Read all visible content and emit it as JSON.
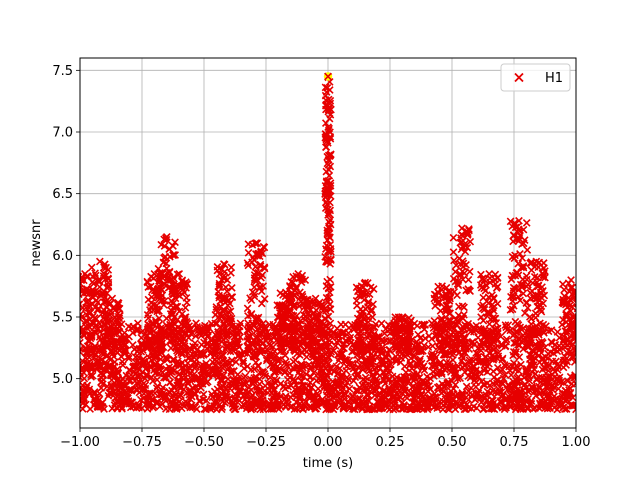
{
  "chart_data": {
    "type": "scatter",
    "title": "",
    "xlabel": "time (s)",
    "ylabel": "newsnr",
    "xlim": [
      -1.0,
      1.0
    ],
    "ylim": [
      4.6,
      7.6
    ],
    "xticks": [
      "−1.00",
      "−0.75",
      "−0.50",
      "−0.25",
      "0.00",
      "0.25",
      "0.50",
      "0.75",
      "1.00"
    ],
    "xtick_values": [
      -1.0,
      -0.75,
      -0.5,
      -0.25,
      0.0,
      0.25,
      0.5,
      0.75,
      1.0
    ],
    "yticks": [
      "5.0",
      "5.5",
      "6.0",
      "6.5",
      "7.0",
      "7.5"
    ],
    "ytick_values": [
      5.0,
      5.5,
      6.0,
      6.5,
      7.0,
      7.5
    ],
    "grid": true,
    "legend_position": "top-right",
    "series": [
      {
        "name": "H1",
        "marker": "x",
        "color": "#e60000",
        "baseline_band": [
          4.75,
          5.45
        ],
        "peaks": [
          {
            "x": -0.98,
            "y": 5.85
          },
          {
            "x": -0.92,
            "y": 5.95
          },
          {
            "x": -0.87,
            "y": 5.65
          },
          {
            "x": -0.7,
            "y": 5.85
          },
          {
            "x": -0.65,
            "y": 6.15
          },
          {
            "x": -0.6,
            "y": 5.85
          },
          {
            "x": -0.42,
            "y": 5.93
          },
          {
            "x": -0.29,
            "y": 6.1
          },
          {
            "x": -0.17,
            "y": 5.7
          },
          {
            "x": -0.12,
            "y": 5.85
          },
          {
            "x": -0.05,
            "y": 5.65
          },
          {
            "x": 0.0,
            "y": 7.45
          },
          {
            "x": 0.15,
            "y": 5.78
          },
          {
            "x": 0.3,
            "y": 5.5
          },
          {
            "x": 0.46,
            "y": 5.75
          },
          {
            "x": 0.54,
            "y": 6.22
          },
          {
            "x": 0.65,
            "y": 5.85
          },
          {
            "x": 0.77,
            "y": 6.28
          },
          {
            "x": 0.84,
            "y": 5.95
          },
          {
            "x": 0.98,
            "y": 5.8
          }
        ]
      },
      {
        "name": "",
        "marker": "o",
        "color": "#ffff00",
        "points": [
          {
            "x": 0.0,
            "y": 7.45
          }
        ]
      }
    ]
  }
}
